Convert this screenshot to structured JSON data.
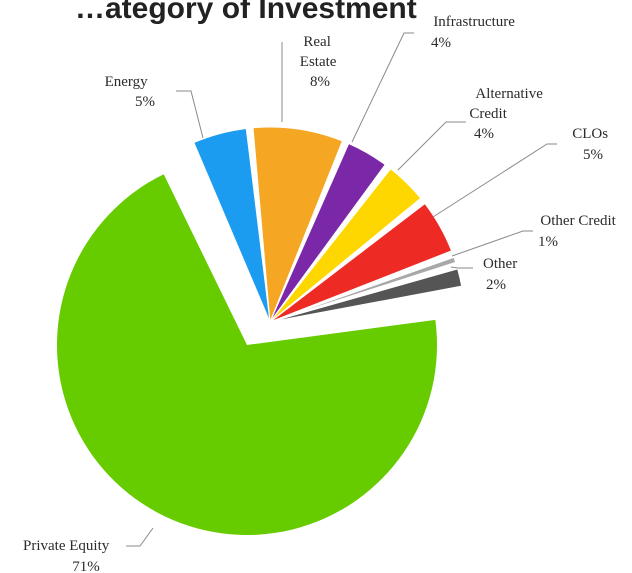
{
  "chart_data": {
    "type": "pie",
    "title": "…ategory of Investment",
    "slices": [
      {
        "label": "Private Equity",
        "value": 71,
        "value_label": "71%",
        "color": "#66cc00"
      },
      {
        "label": "Energy",
        "value": 5,
        "value_label": "5%",
        "color": "#1c9cf0"
      },
      {
        "label": "Real Estate",
        "value": 8,
        "value_label": "8%",
        "color": "#f5a623"
      },
      {
        "label": "Infrastructure",
        "value": 4,
        "value_label": "4%",
        "color": "#7b28a8"
      },
      {
        "label": "Alternative Credit",
        "value": 4,
        "value_label": "4%",
        "color": "#ffd700"
      },
      {
        "label": "CLOs",
        "value": 5,
        "value_label": "5%",
        "color": "#ee2a24"
      },
      {
        "label": "Other Credit",
        "value": 1,
        "value_label": "1%",
        "color": "#a8a8a8"
      },
      {
        "label": "Other",
        "value": 2,
        "value_label": "2%",
        "color": "#555555"
      }
    ],
    "labels": {
      "private_equity": [
        "Private Equity",
        "71%"
      ],
      "energy": [
        "Energy",
        "5%"
      ],
      "real_estate": [
        "Real",
        "Estate",
        "8%"
      ],
      "infrastructure": [
        "Infrastructure",
        "4%"
      ],
      "alternative_credit": [
        "Alternative",
        "Credit",
        "4%"
      ],
      "clos": [
        "CLOs",
        "5%"
      ],
      "other_credit": [
        "Other Credit",
        "1%"
      ],
      "other": [
        "Other",
        "2%"
      ]
    },
    "legend": "none"
  }
}
